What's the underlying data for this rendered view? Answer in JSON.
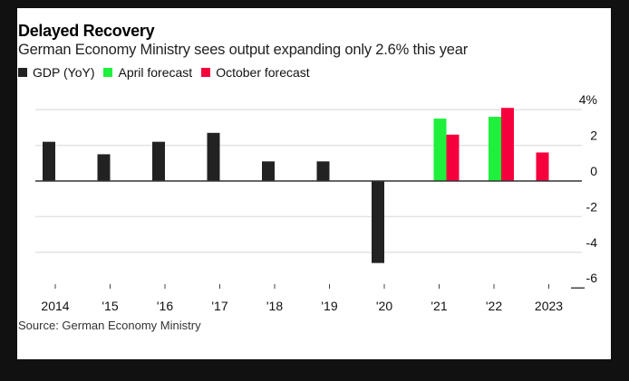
{
  "chart_data": {
    "type": "bar",
    "title": "Delayed Recovery",
    "subtitle": "German Economy Ministry sees output expanding only 2.6% this year",
    "source": "Source: German Economy Ministry",
    "categories": [
      "2014",
      "'15",
      "'16",
      "'17",
      "'18",
      "'19",
      "'20",
      "'21",
      "'22",
      "2023"
    ],
    "series": [
      {
        "name": "GDP (YoY)",
        "color": "#222222",
        "values": [
          2.2,
          1.5,
          2.2,
          2.7,
          1.1,
          1.1,
          -4.6,
          null,
          null,
          null
        ]
      },
      {
        "name": "April forecast",
        "color": "#1ef03c",
        "values": [
          null,
          null,
          null,
          null,
          null,
          null,
          null,
          3.5,
          3.6,
          null
        ]
      },
      {
        "name": "October forecast",
        "color": "#f5003c",
        "values": [
          null,
          null,
          null,
          null,
          null,
          null,
          null,
          2.6,
          4.1,
          1.6
        ]
      }
    ],
    "ylim": [
      -6,
      4
    ],
    "yticks": [
      4,
      2,
      0,
      -2,
      -4,
      -6
    ],
    "ytick_labels": [
      "4%",
      "2",
      "0",
      "-2",
      "-4",
      "-6"
    ],
    "xlabel": "",
    "ylabel": "",
    "grid": true,
    "legend_position": "top-left"
  }
}
